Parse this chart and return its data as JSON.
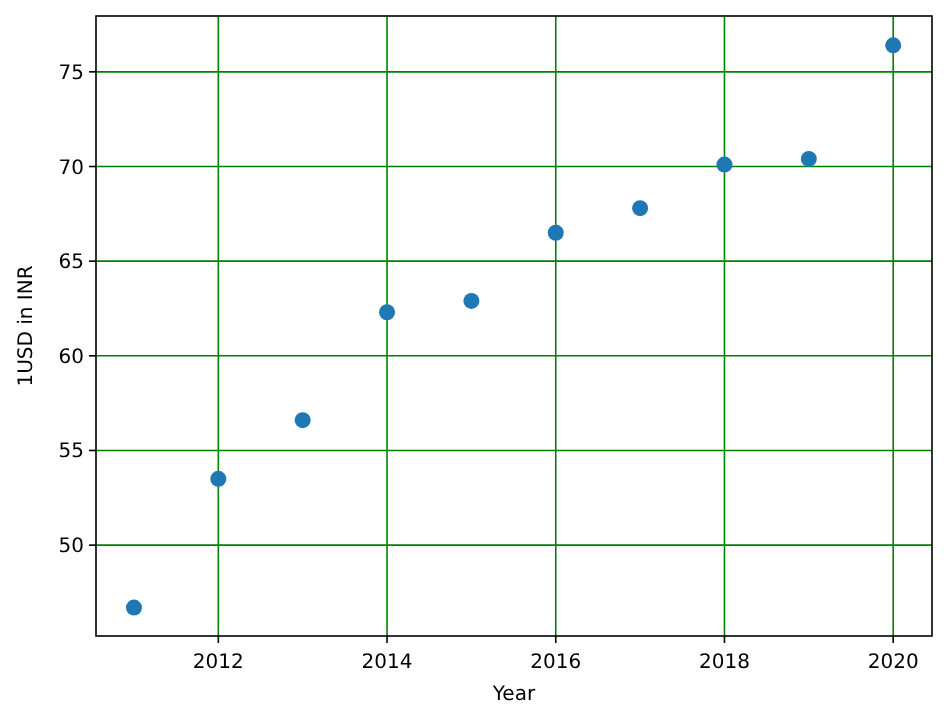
{
  "chart_data": {
    "type": "scatter",
    "xlabel": "Year",
    "ylabel": "1USD in INR",
    "x": [
      2011,
      2012,
      2013,
      2014,
      2015,
      2016,
      2017,
      2018,
      2019,
      2020
    ],
    "series": [
      {
        "color": "#1f77b4",
        "values": [
          46.7,
          53.5,
          56.6,
          62.3,
          62.9,
          66.5,
          67.8,
          70.1,
          70.4,
          76.4
        ]
      }
    ],
    "xlim": [
      2010.55,
      2020.46
    ],
    "xticks": [
      2012,
      2014,
      2016,
      2018,
      2020
    ],
    "ylim": [
      45.2,
      77.95
    ],
    "yticks": [
      50,
      55,
      60,
      65,
      70,
      75
    ],
    "grid": true,
    "marker": "circle"
  }
}
